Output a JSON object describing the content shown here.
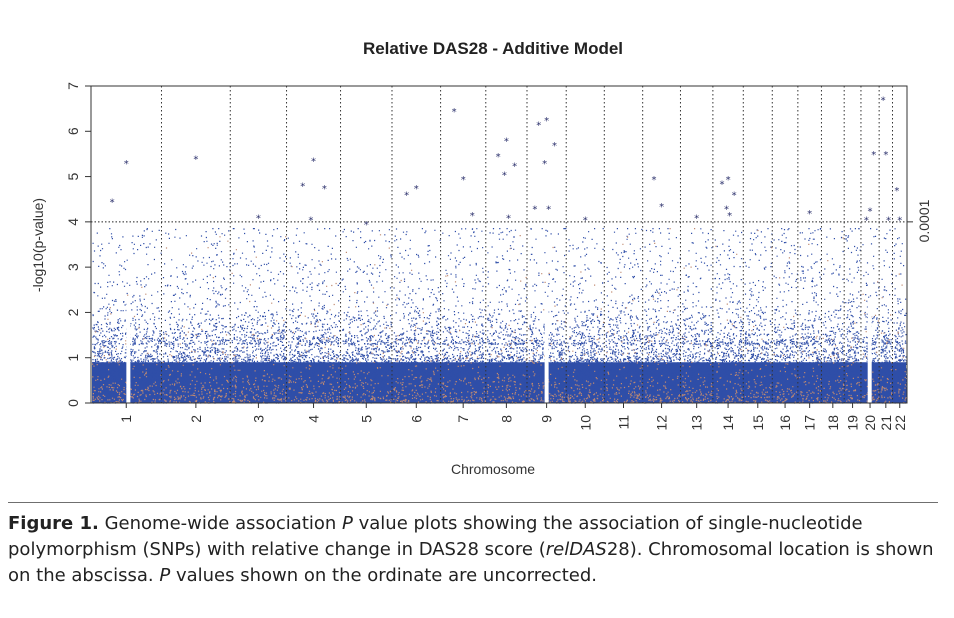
{
  "chart_data": {
    "type": "scatter",
    "title": "Relative DAS28 - Additive Model",
    "xlabel": "Chromosome",
    "ylabel": "-log10(p-value)",
    "ylim": [
      0,
      7
    ],
    "yticks": [
      "0",
      "1",
      "2",
      "3",
      "4",
      "5",
      "6",
      "7"
    ],
    "categories": [
      "1",
      "2",
      "3",
      "4",
      "5",
      "6",
      "7",
      "8",
      "9",
      "10",
      "11",
      "12",
      "13",
      "14",
      "15",
      "16",
      "17",
      "18",
      "19",
      "20",
      "21",
      "22"
    ],
    "threshold": {
      "value": 4,
      "label": "0.0001"
    },
    "point_color": "#2f4ea8",
    "secondary_point_color": "#c08a70",
    "grid": "vertical dotted lines at chromosome boundaries",
    "highlighted_points": [
      {
        "chromosome": "1",
        "value": 5.3
      },
      {
        "chromosome": "1",
        "value": 4.45
      },
      {
        "chromosome": "2",
        "value": 5.4
      },
      {
        "chromosome": "3",
        "value": 4.1
      },
      {
        "chromosome": "4",
        "value": 5.35
      },
      {
        "chromosome": "4",
        "value": 4.8
      },
      {
        "chromosome": "4",
        "value": 4.75
      },
      {
        "chromosome": "4",
        "value": 4.05
      },
      {
        "chromosome": "5",
        "value": 3.95
      },
      {
        "chromosome": "6",
        "value": 4.75
      },
      {
        "chromosome": "6",
        "value": 4.6
      },
      {
        "chromosome": "7",
        "value": 4.95
      },
      {
        "chromosome": "7",
        "value": 6.45
      },
      {
        "chromosome": "7",
        "value": 4.15
      },
      {
        "chromosome": "8",
        "value": 5.8
      },
      {
        "chromosome": "8",
        "value": 5.45
      },
      {
        "chromosome": "8",
        "value": 5.25
      },
      {
        "chromosome": "8",
        "value": 5.05
      },
      {
        "chromosome": "8",
        "value": 4.1
      },
      {
        "chromosome": "9",
        "value": 6.25
      },
      {
        "chromosome": "9",
        "value": 6.15
      },
      {
        "chromosome": "9",
        "value": 5.7
      },
      {
        "chromosome": "9",
        "value": 5.3
      },
      {
        "chromosome": "9",
        "value": 4.3
      },
      {
        "chromosome": "9",
        "value": 4.3
      },
      {
        "chromosome": "10",
        "value": 4.05
      },
      {
        "chromosome": "12",
        "value": 4.35
      },
      {
        "chromosome": "12",
        "value": 4.95
      },
      {
        "chromosome": "13",
        "value": 4.1
      },
      {
        "chromosome": "14",
        "value": 4.95
      },
      {
        "chromosome": "14",
        "value": 4.85
      },
      {
        "chromosome": "14",
        "value": 4.6
      },
      {
        "chromosome": "14",
        "value": 4.3
      },
      {
        "chromosome": "14",
        "value": 4.15
      },
      {
        "chromosome": "17",
        "value": 4.2
      },
      {
        "chromosome": "20",
        "value": 4.25
      },
      {
        "chromosome": "20",
        "value": 4.05
      },
      {
        "chromosome": "20",
        "value": 5.5
      },
      {
        "chromosome": "21",
        "value": 5.5
      },
      {
        "chromosome": "21",
        "value": 6.7
      },
      {
        "chromosome": "21",
        "value": 4.05
      },
      {
        "chromosome": "22",
        "value": 4.05
      },
      {
        "chromosome": "22",
        "value": 4.7
      }
    ]
  },
  "caption": {
    "label": "Figure 1.",
    "part1": " Genome-wide association ",
    "p1": "P",
    "part2": " value plots showing the association of single-nucleotide polymorphism (SNPs) with relative change in DAS28 score (",
    "rel": "relDAS",
    "part3": "28). Chromosomal location is shown on the abscissa. ",
    "p2": "P",
    "part4": " values shown on the ordinate are uncorrected."
  }
}
